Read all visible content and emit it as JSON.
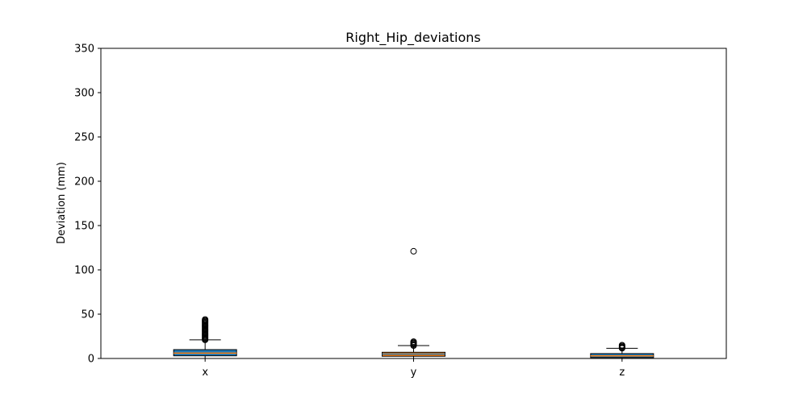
{
  "chart_data": {
    "type": "box",
    "title": "Right_Hip_deviations",
    "xlabel": "",
    "ylabel": "Deviation (mm)",
    "ylim": [
      0,
      350
    ],
    "yticks": [
      0,
      50,
      100,
      150,
      200,
      250,
      300,
      350
    ],
    "grid": false,
    "categories": [
      "x",
      "y",
      "z"
    ],
    "boxes": [
      {
        "category": "x",
        "color": "#1f77b4",
        "whisker_low": 0,
        "q1": 3,
        "median": 6,
        "q3": 10,
        "whisker_high": 21,
        "outliers": [
          21,
          22,
          23,
          24,
          25,
          26,
          27,
          28,
          29,
          30,
          31,
          32,
          33,
          34,
          35,
          36,
          37,
          38,
          39,
          40,
          41,
          42,
          43,
          44
        ]
      },
      {
        "category": "y",
        "color": "#ff7f0e",
        "whisker_low": 0,
        "q1": 2.5,
        "median": 5,
        "q3": 7,
        "whisker_high": 14.5,
        "outliers": [
          14.5,
          15,
          16,
          17,
          18,
          19,
          121
        ]
      },
      {
        "category": "z",
        "color": "#1f77b4",
        "whisker_low": 0,
        "q1": 1,
        "median": 3,
        "q3": 5.5,
        "whisker_high": 11.5,
        "outliers": [
          11.5,
          12,
          13,
          14,
          15
        ]
      }
    ]
  }
}
